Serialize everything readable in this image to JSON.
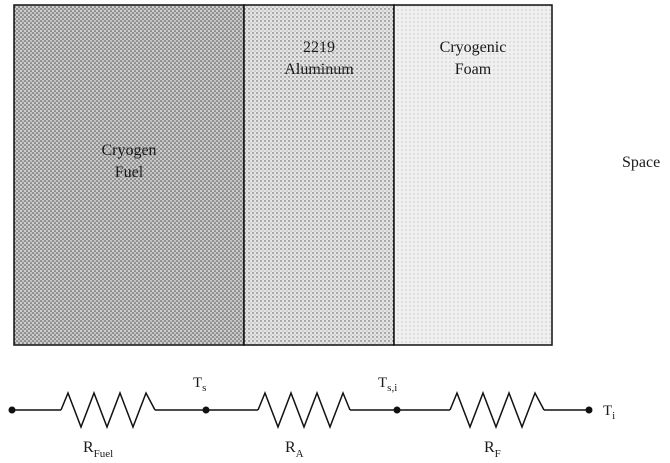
{
  "layers": [
    {
      "id": "fuel",
      "line1": "Cryogen",
      "line2": "Fuel"
    },
    {
      "id": "aluminum",
      "line1": "2219",
      "line2": "Aluminum"
    },
    {
      "id": "foam",
      "line1": "Cryogenic",
      "line2": "Foam"
    }
  ],
  "space_label": "Space",
  "circuit": {
    "nodes": [
      {
        "base": "T",
        "sub": "s"
      },
      {
        "base": "T",
        "sub": "s,i"
      },
      {
        "base": "T",
        "sub": "i"
      }
    ],
    "resistors": [
      {
        "base": "R",
        "sub": "Fuel"
      },
      {
        "base": "R",
        "sub": "A"
      },
      {
        "base": "R",
        "sub": "F"
      }
    ]
  }
}
